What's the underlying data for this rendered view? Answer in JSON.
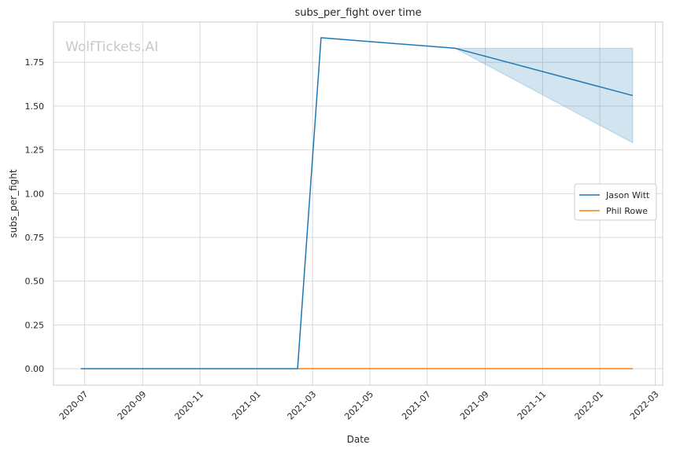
{
  "watermark": "WolfTickets.AI",
  "colors": {
    "series_0": "#1f77b4",
    "series_1": "#ff7f0e",
    "band": "#1f77b4",
    "grid": "#d9d9d9",
    "frame": "#cccccc"
  },
  "chart_data": {
    "type": "line",
    "title": "subs_per_fight over time",
    "xlabel": "Date",
    "ylabel": "subs_per_fight",
    "x_is_date": true,
    "xlim": [
      "2020-05-29",
      "2022-03-09"
    ],
    "ylim": [
      -0.094,
      1.98
    ],
    "grid": true,
    "legend_position": "center-right",
    "xticks": [
      "2020-07",
      "2020-09",
      "2020-11",
      "2021-01",
      "2021-03",
      "2021-05",
      "2021-07",
      "2021-09",
      "2021-11",
      "2022-01",
      "2022-03"
    ],
    "yticks": [
      "0.00",
      "0.25",
      "0.50",
      "0.75",
      "1.00",
      "1.25",
      "1.50",
      "1.75"
    ],
    "series": [
      {
        "name": "Jason Witt",
        "x": [
          "2020-06-27",
          "2021-02-13",
          "2021-03-10",
          "2021-07-31",
          "2022-02-05"
        ],
        "y": [
          0.0,
          0.0,
          1.89,
          1.83,
          1.56
        ]
      },
      {
        "name": "Phil Rowe",
        "x": [
          "2021-02-13",
          "2022-02-05"
        ],
        "y": [
          0.0,
          0.0
        ]
      }
    ],
    "band": {
      "series": "Jason Witt",
      "x": [
        "2021-07-31",
        "2022-02-05"
      ],
      "upper": [
        1.83,
        1.83
      ],
      "lower": [
        1.83,
        1.29
      ]
    }
  }
}
